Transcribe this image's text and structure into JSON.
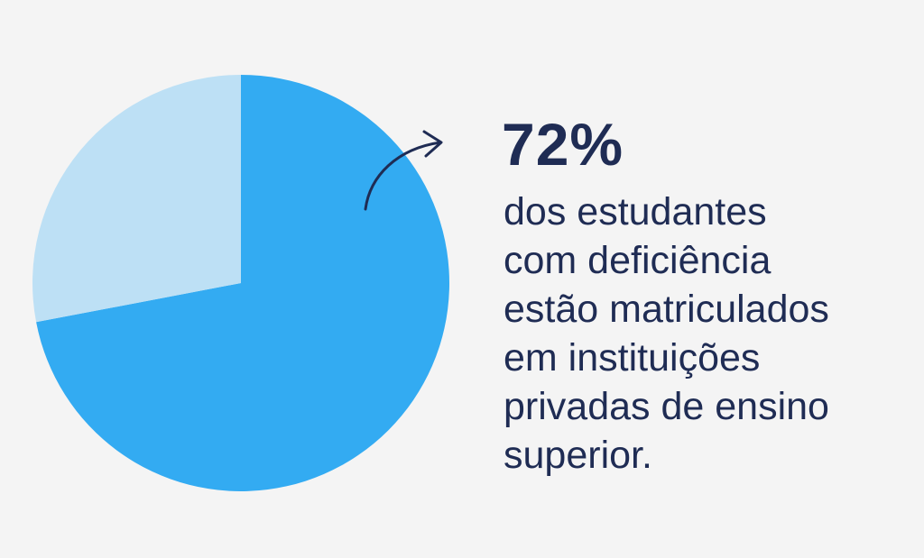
{
  "chart_data": {
    "type": "pie",
    "slices": [
      {
        "value": 72,
        "color": "#33abf2"
      },
      {
        "value": 28,
        "color": "#bde0f5"
      }
    ],
    "start": "top",
    "direction": "clockwise"
  },
  "headline": "72%",
  "description_lines": [
    "dos estudantes",
    "com deficiência",
    "estão matriculados",
    "em instituições",
    "privadas de ensino",
    "superior."
  ],
  "colors": {
    "background": "#f4f4f4",
    "text": "#1f2c54"
  },
  "icons": {
    "arrow": "curved-arrow-icon"
  }
}
